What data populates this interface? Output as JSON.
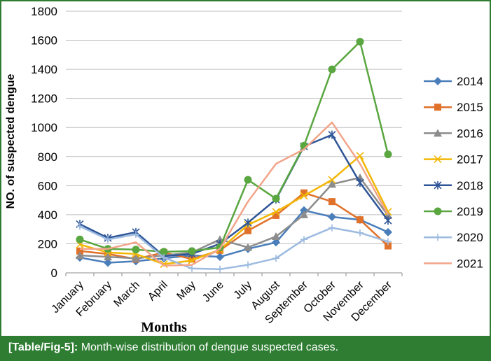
{
  "chart_data": {
    "type": "line",
    "categories": [
      "January",
      "February",
      "March",
      "April",
      "May",
      "June",
      "July",
      "August",
      "September",
      "October",
      "November",
      "December"
    ],
    "series": [
      {
        "name": "2014",
        "color": "#4a7ebb",
        "marker": "diamond",
        "values": [
          105,
          70,
          80,
          100,
          120,
          110,
          165,
          210,
          430,
          385,
          365,
          280
        ]
      },
      {
        "name": "2015",
        "color": "#e0712a",
        "marker": "square",
        "values": [
          150,
          130,
          95,
          140,
          95,
          155,
          290,
          395,
          550,
          490,
          365,
          185
        ]
      },
      {
        "name": "2016",
        "color": "#8c8c8c",
        "marker": "triangle",
        "values": [
          120,
          110,
          100,
          120,
          140,
          230,
          175,
          250,
          400,
          610,
          655,
          395
        ]
      },
      {
        "name": "2017",
        "color": "#f2b705",
        "marker": "x",
        "values": [
          195,
          140,
          130,
          60,
          85,
          160,
          330,
          420,
          530,
          640,
          805,
          420
        ]
      },
      {
        "name": "2018",
        "color": "#2e5597",
        "marker": "star",
        "values": [
          335,
          240,
          280,
          115,
          130,
          200,
          345,
          505,
          870,
          950,
          620,
          360
        ]
      },
      {
        "name": "2019",
        "color": "#5aa640",
        "marker": "circle",
        "values": [
          230,
          165,
          160,
          145,
          150,
          175,
          640,
          510,
          875,
          1400,
          1590,
          815
        ]
      },
      {
        "name": "2020",
        "color": "#9dbbe0",
        "marker": "plus",
        "values": [
          320,
          230,
          265,
          105,
          30,
          25,
          55,
          100,
          230,
          310,
          275,
          215
        ]
      },
      {
        "name": "2021",
        "color": "#f2a58a",
        "marker": "none",
        "values": [
          165,
          165,
          210,
          50,
          55,
          165,
          490,
          750,
          850,
          1035,
          750,
          400
        ]
      }
    ],
    "title": "",
    "xlabel": "Months",
    "ylabel": "NO. of suspected dengue",
    "ylim": [
      0,
      1800
    ],
    "yticks": [
      0,
      200,
      400,
      600,
      800,
      1000,
      1200,
      1400,
      1600,
      1800
    ],
    "grid": "horizontal",
    "legend": "right"
  },
  "caption": {
    "label": "[Table/Fig-5]:",
    "text": "Month-wise distribution of dengue suspected cases."
  }
}
